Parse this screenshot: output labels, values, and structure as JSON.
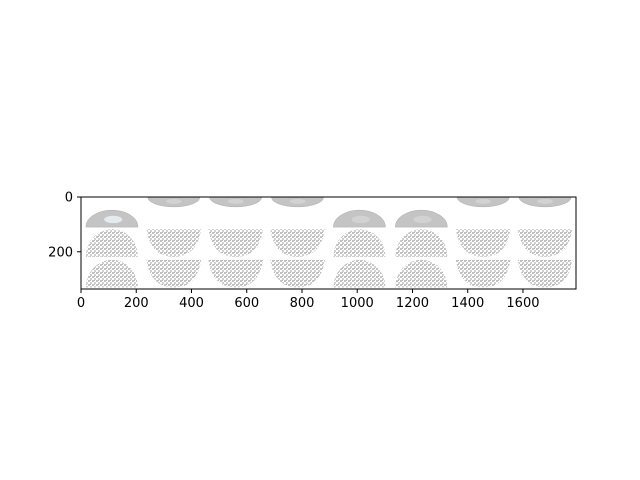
{
  "chart_data": {
    "type": "heatmap",
    "title": "",
    "xlabel": "",
    "ylabel": "",
    "xlim": [
      0,
      1792
    ],
    "ylim": [
      336,
      0
    ],
    "x_ticks": [
      0,
      200,
      400,
      600,
      800,
      1000,
      1200,
      1400,
      1600
    ],
    "y_ticks": [
      0,
      200
    ],
    "grid": false,
    "colormap": "gray",
    "montage": {
      "columns": 8,
      "rows": 3,
      "tile_width": 224,
      "tile_height": 112,
      "row_kinds": [
        "slice",
        "point-sampled",
        "point-sampled"
      ]
    },
    "colors": {
      "background": "#ffffff",
      "tissue": "#c4c4c4",
      "tissue_dark": "#b4b4b4",
      "tissue_light": "#d4d4d4",
      "highlight": "#e8eef2"
    }
  }
}
